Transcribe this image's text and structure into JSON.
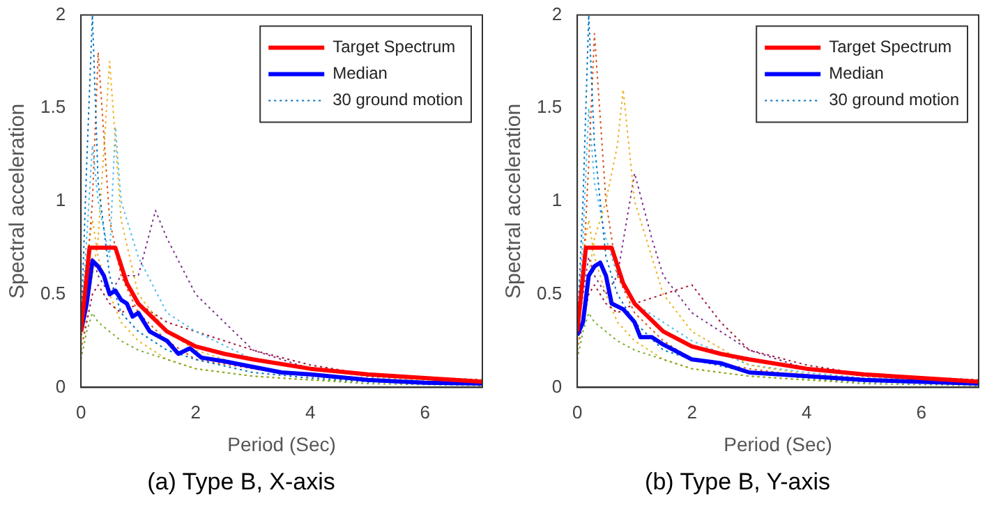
{
  "chart_data": [
    {
      "type": "line",
      "title": "(a) Type B, X-axis",
      "xlabel": "Period (Sec)",
      "ylabel": "Spectral acceleration",
      "xlim": [
        0,
        7
      ],
      "xticks": [
        0,
        2,
        4,
        6
      ],
      "ylim": [
        0,
        2
      ],
      "yticks": [
        0,
        0.5,
        1,
        1.5,
        2
      ],
      "grid": false,
      "legend": "top right",
      "marker": "none",
      "series": [
        {
          "name": "Target Spectrum",
          "color": "#ff0000",
          "line_style": "solid",
          "x": [
            0,
            0.15,
            0.6,
            0.8,
            1,
            1.5,
            2,
            2.5,
            3,
            4,
            5,
            6,
            7
          ],
          "values": [
            0.3,
            0.75,
            0.75,
            0.56,
            0.45,
            0.3,
            0.22,
            0.18,
            0.15,
            0.1,
            0.07,
            0.05,
            0.03
          ]
        },
        {
          "name": "Median",
          "color": "#0000ff",
          "line_style": "solid",
          "x": [
            0,
            0.1,
            0.2,
            0.3,
            0.4,
            0.5,
            0.6,
            0.7,
            0.8,
            0.9,
            1,
            1.2,
            1.5,
            1.7,
            1.9,
            2.1,
            2.5,
            3,
            3.5,
            4,
            5,
            6,
            7
          ],
          "values": [
            0.3,
            0.45,
            0.68,
            0.65,
            0.6,
            0.5,
            0.52,
            0.47,
            0.45,
            0.38,
            0.4,
            0.3,
            0.25,
            0.18,
            0.21,
            0.16,
            0.14,
            0.11,
            0.08,
            0.07,
            0.04,
            0.025,
            0.02
          ]
        },
        {
          "name": "30 ground motion",
          "color": "#0072bd",
          "line_style": "dotted",
          "x": [
            0,
            0.1,
            0.2,
            0.3,
            0.5,
            0.7,
            1,
            1.5,
            2,
            3,
            4,
            5,
            7
          ],
          "values": [
            0.3,
            1.2,
            2.0,
            1.1,
            0.6,
            0.4,
            0.3,
            0.2,
            0.15,
            0.08,
            0.05,
            0.03,
            0.02
          ]
        },
        {
          "color": "#d95319",
          "line_style": "dotted",
          "x": [
            0,
            0.1,
            0.2,
            0.3,
            0.5,
            0.7,
            1,
            1.5,
            2,
            3,
            4,
            5,
            7
          ],
          "values": [
            0.25,
            0.6,
            1.0,
            1.8,
            0.9,
            0.6,
            0.4,
            0.25,
            0.15,
            0.1,
            0.06,
            0.04,
            0.02
          ]
        },
        {
          "color": "#edb120",
          "line_style": "dotted",
          "x": [
            0,
            0.1,
            0.2,
            0.3,
            0.5,
            0.7,
            1,
            1.5,
            2,
            3,
            4,
            5,
            7
          ],
          "values": [
            0.2,
            0.4,
            0.6,
            0.8,
            1.75,
            0.9,
            0.5,
            0.3,
            0.2,
            0.1,
            0.07,
            0.05,
            0.03
          ]
        },
        {
          "color": "#7e2f8e",
          "line_style": "dotted",
          "x": [
            0,
            0.1,
            0.2,
            0.3,
            0.5,
            0.7,
            1,
            1.3,
            1.5,
            2,
            3,
            4,
            5,
            7
          ],
          "values": [
            0.3,
            0.5,
            0.7,
            0.6,
            0.5,
            0.6,
            0.6,
            0.95,
            0.8,
            0.5,
            0.2,
            0.1,
            0.06,
            0.03
          ]
        },
        {
          "color": "#77ac30",
          "line_style": "dotted",
          "x": [
            0,
            0.1,
            0.2,
            0.3,
            0.5,
            0.7,
            1,
            1.5,
            2,
            3,
            4,
            5,
            7
          ],
          "values": [
            0.15,
            0.3,
            0.4,
            0.35,
            0.3,
            0.25,
            0.2,
            0.15,
            0.1,
            0.06,
            0.04,
            0.02,
            0.01
          ]
        },
        {
          "color": "#4dbeee",
          "line_style": "dotted",
          "x": [
            0,
            0.1,
            0.2,
            0.3,
            0.5,
            0.6,
            0.7,
            1,
            1.5,
            2,
            3,
            4,
            5,
            7
          ],
          "values": [
            0.35,
            0.8,
            1.3,
            1.0,
            0.7,
            1.4,
            1.0,
            0.7,
            0.4,
            0.3,
            0.15,
            0.1,
            0.06,
            0.03
          ]
        },
        {
          "color": "#a2142f",
          "line_style": "dotted",
          "x": [
            0,
            0.1,
            0.2,
            0.3,
            0.5,
            0.7,
            1,
            1.5,
            2,
            3,
            4,
            5,
            7
          ],
          "values": [
            0.2,
            0.35,
            0.5,
            0.55,
            0.45,
            0.4,
            0.45,
            0.35,
            0.3,
            0.2,
            0.12,
            0.07,
            0.04
          ]
        },
        {
          "color": "#edb120",
          "line_style": "dotted",
          "x": [
            0,
            0.1,
            0.2,
            0.3,
            0.5,
            0.7,
            1,
            1.5,
            2,
            3,
            4,
            5,
            7
          ],
          "values": [
            0.25,
            0.7,
            0.9,
            0.7,
            0.5,
            0.35,
            0.25,
            0.15,
            0.1,
            0.06,
            0.04,
            0.03,
            0.02
          ]
        }
      ]
    },
    {
      "type": "line",
      "title": "(b) Type B, Y-axis",
      "xlabel": "Period (Sec)",
      "ylabel": "Spectral acceleration",
      "xlim": [
        0,
        7
      ],
      "xticks": [
        0,
        2,
        4,
        6
      ],
      "ylim": [
        0,
        2
      ],
      "yticks": [
        0,
        0.5,
        1,
        1.5,
        2
      ],
      "grid": false,
      "legend": "top right",
      "marker": "none",
      "series": [
        {
          "name": "Target Spectrum",
          "color": "#ff0000",
          "line_style": "solid",
          "x": [
            0,
            0.15,
            0.6,
            0.8,
            1,
            1.5,
            2,
            2.5,
            3,
            4,
            5,
            6,
            7
          ],
          "values": [
            0.3,
            0.75,
            0.75,
            0.56,
            0.45,
            0.3,
            0.22,
            0.18,
            0.15,
            0.1,
            0.07,
            0.05,
            0.03
          ]
        },
        {
          "name": "Median",
          "color": "#0000ff",
          "line_style": "solid",
          "x": [
            0,
            0.1,
            0.2,
            0.3,
            0.4,
            0.5,
            0.6,
            0.8,
            1,
            1.1,
            1.3,
            1.5,
            2,
            2.5,
            3,
            4,
            5,
            7
          ],
          "values": [
            0.28,
            0.35,
            0.6,
            0.65,
            0.67,
            0.6,
            0.45,
            0.42,
            0.35,
            0.27,
            0.27,
            0.23,
            0.15,
            0.13,
            0.08,
            0.06,
            0.04,
            0.02
          ]
        },
        {
          "name": "30 ground motion",
          "color": "#0072bd",
          "line_style": "dotted",
          "x": [
            0,
            0.1,
            0.2,
            0.3,
            0.5,
            0.7,
            1,
            1.5,
            2,
            3,
            4,
            5,
            7
          ],
          "values": [
            0.3,
            1.0,
            2.0,
            1.3,
            0.7,
            0.5,
            0.35,
            0.2,
            0.15,
            0.08,
            0.05,
            0.03,
            0.02
          ]
        },
        {
          "color": "#d95319",
          "line_style": "dotted",
          "x": [
            0,
            0.1,
            0.2,
            0.3,
            0.5,
            0.7,
            1,
            1.5,
            2,
            3,
            4,
            5,
            7
          ],
          "values": [
            0.25,
            0.6,
            1.2,
            1.9,
            1.0,
            0.6,
            0.4,
            0.25,
            0.15,
            0.1,
            0.06,
            0.04,
            0.02
          ]
        },
        {
          "color": "#edb120",
          "line_style": "dotted",
          "x": [
            0,
            0.1,
            0.2,
            0.3,
            0.5,
            0.7,
            0.8,
            1,
            1.5,
            2,
            3,
            4,
            5,
            7
          ],
          "values": [
            0.2,
            0.4,
            0.6,
            0.8,
            1.0,
            1.3,
            1.6,
            1.0,
            0.5,
            0.3,
            0.12,
            0.07,
            0.05,
            0.03
          ]
        },
        {
          "color": "#7e2f8e",
          "line_style": "dotted",
          "x": [
            0,
            0.1,
            0.2,
            0.3,
            0.5,
            0.7,
            1,
            1.3,
            1.5,
            2,
            3,
            4,
            5,
            7
          ],
          "values": [
            0.3,
            0.5,
            0.7,
            0.6,
            0.5,
            0.6,
            1.15,
            0.8,
            0.6,
            0.4,
            0.2,
            0.1,
            0.06,
            0.03
          ]
        },
        {
          "color": "#77ac30",
          "line_style": "dotted",
          "x": [
            0,
            0.1,
            0.2,
            0.3,
            0.5,
            0.7,
            1,
            1.5,
            2,
            3,
            4,
            5,
            7
          ],
          "values": [
            0.15,
            0.3,
            0.4,
            0.35,
            0.3,
            0.25,
            0.2,
            0.15,
            0.1,
            0.06,
            0.04,
            0.02,
            0.01
          ]
        },
        {
          "color": "#4dbeee",
          "line_style": "dotted",
          "x": [
            0,
            0.1,
            0.2,
            0.3,
            0.5,
            0.7,
            1,
            1.5,
            2,
            3,
            4,
            5,
            7
          ],
          "values": [
            0.35,
            0.8,
            1.5,
            1.1,
            0.8,
            0.6,
            0.45,
            0.35,
            0.25,
            0.12,
            0.08,
            0.05,
            0.03
          ]
        },
        {
          "color": "#a2142f",
          "line_style": "dotted",
          "x": [
            0,
            0.1,
            0.2,
            0.3,
            0.5,
            0.7,
            1,
            1.5,
            2,
            2.5,
            3,
            4,
            5,
            7
          ],
          "values": [
            0.2,
            0.35,
            0.5,
            0.55,
            0.45,
            0.4,
            0.45,
            0.5,
            0.55,
            0.35,
            0.2,
            0.12,
            0.07,
            0.04
          ]
        },
        {
          "color": "#edb120",
          "line_style": "dotted",
          "x": [
            0,
            0.1,
            0.2,
            0.3,
            0.5,
            0.7,
            1,
            1.5,
            2,
            3,
            4,
            5,
            7
          ],
          "values": [
            0.25,
            0.7,
            0.9,
            0.7,
            0.5,
            0.35,
            0.25,
            0.15,
            0.1,
            0.06,
            0.04,
            0.03,
            0.02
          ]
        }
      ]
    }
  ]
}
